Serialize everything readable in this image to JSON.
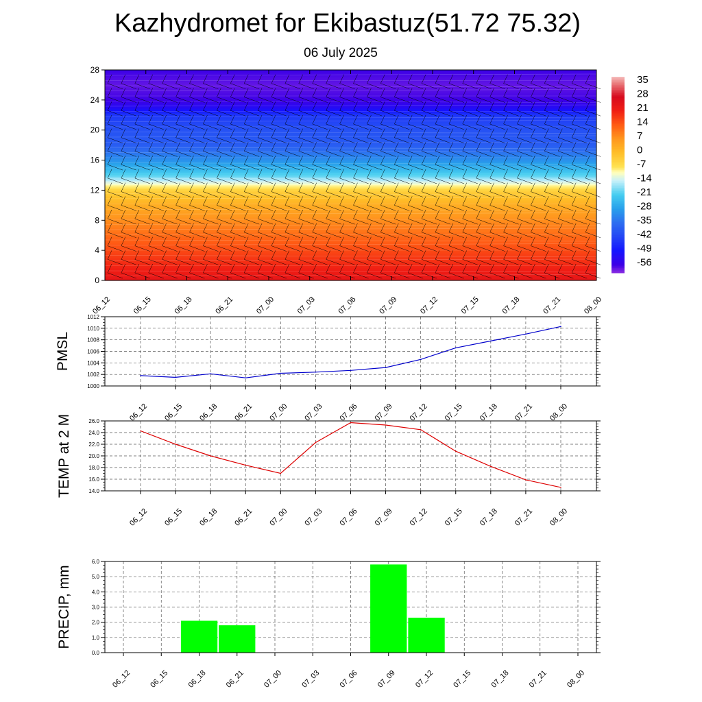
{
  "title": "Kazhydromet for Ekibastuz(51.72 75.32)",
  "subtitle": "06 July 2025",
  "time_labels": [
    "06_12",
    "06_15",
    "06_18",
    "06_21",
    "07_00",
    "07_03",
    "07_06",
    "07_09",
    "07_12",
    "07_15",
    "07_18",
    "07_21",
    "08_00"
  ],
  "chart_data": [
    {
      "type": "heatmap",
      "title": "",
      "xlabel": "",
      "ylabel": "",
      "x": [
        "06_12",
        "06_15",
        "06_18",
        "06_21",
        "07_00",
        "07_03",
        "07_06",
        "07_09",
        "07_12",
        "07_15",
        "07_18",
        "07_21",
        "08_00"
      ],
      "yticks": [
        0,
        4,
        8,
        12,
        16,
        20,
        24,
        28
      ],
      "ylim": [
        0,
        28
      ],
      "colorbar": {
        "labels": [
          "35",
          "28",
          "21",
          "14",
          "7",
          "0",
          "-7",
          "-14",
          "-21",
          "-28",
          "-35",
          "-42",
          "-49",
          "-56"
        ],
        "range": [
          -60,
          38
        ]
      },
      "level_temperature_profile": {
        "levels": [
          0,
          2,
          4,
          6,
          8,
          10,
          12,
          13,
          14,
          16,
          18,
          20,
          22,
          23,
          24,
          26,
          28
        ],
        "values": [
          24,
          20,
          16,
          12,
          8,
          3,
          -4,
          -12,
          -20,
          -30,
          -38,
          -40,
          -44,
          -52,
          -56,
          -58,
          -56
        ]
      },
      "wind_barbs": true
    },
    {
      "type": "line",
      "ylabel": "PMSL",
      "x": [
        "06_12",
        "06_15",
        "06_18",
        "06_21",
        "07_00",
        "07_03",
        "07_06",
        "07_09",
        "07_12",
        "07_15",
        "07_18",
        "07_21",
        "08_00"
      ],
      "values": [
        1001.8,
        1001.5,
        1002.1,
        1001.4,
        1002.2,
        1002.4,
        1002.7,
        1003.2,
        1004.6,
        1006.6,
        1007.8,
        1009.0,
        1010.3
      ],
      "ylim": [
        1000,
        1012
      ],
      "yticks": [
        "1000",
        "1002",
        "1004",
        "1006",
        "1008",
        "1010",
        "1012"
      ],
      "color": "#0000cc",
      "grid": true
    },
    {
      "type": "line",
      "ylabel": "TEMP at 2 M",
      "x": [
        "06_12",
        "06_15",
        "06_18",
        "06_21",
        "07_00",
        "07_03",
        "07_06",
        "07_09",
        "07_12",
        "07_15",
        "07_18",
        "07_21",
        "08_00"
      ],
      "values": [
        24.3,
        22.0,
        20.0,
        18.4,
        17.0,
        22.3,
        25.7,
        25.3,
        24.5,
        20.8,
        18.2,
        15.9,
        14.6
      ],
      "ylim": [
        14,
        26
      ],
      "yticks": [
        "14.0",
        "16.0",
        "18.0",
        "20.0",
        "22.0",
        "24.0",
        "26.0"
      ],
      "color": "#dd0000",
      "grid": true
    },
    {
      "type": "bar",
      "ylabel": "PRECIP, mm",
      "x": [
        "06_12",
        "06_15",
        "06_18",
        "06_21",
        "07_00",
        "07_03",
        "07_06",
        "07_09",
        "07_12",
        "07_15",
        "07_18",
        "07_21",
        "08_00"
      ],
      "values": [
        0,
        0,
        2.1,
        1.8,
        0,
        0,
        0,
        5.8,
        2.3,
        0,
        0,
        0,
        0
      ],
      "ylim": [
        0,
        6
      ],
      "yticks": [
        "0.0",
        "1.0",
        "2.0",
        "3.0",
        "4.0",
        "5.0",
        "6.0"
      ],
      "color": "#00ff00",
      "grid": true
    }
  ]
}
